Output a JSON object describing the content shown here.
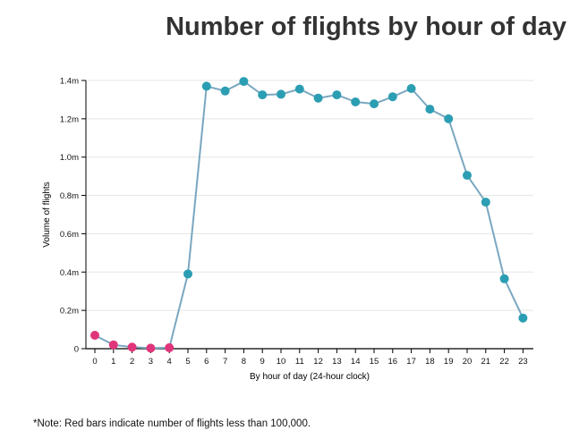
{
  "title": "Number of flights by hour of day",
  "note": "*Note: Red bars indicate number of flights less than 100,000.",
  "colors": {
    "normal_point": "#2b9eb3",
    "low_point": "#e0357a",
    "line": "#7aa7c0",
    "gridline": "#e5e5e5",
    "axis": "#000000",
    "title": "#333333"
  },
  "chart_data": {
    "type": "line",
    "title": "Number of flights by hour of day",
    "xlabel": "By hour of day (24-hour clock)",
    "ylabel": "Volume of flights",
    "x": [
      0,
      1,
      2,
      3,
      4,
      5,
      6,
      7,
      8,
      9,
      10,
      11,
      12,
      13,
      14,
      15,
      16,
      17,
      18,
      19,
      20,
      21,
      22,
      23
    ],
    "x_tick_labels": [
      "0",
      "1",
      "2",
      "3",
      "4",
      "5",
      "6",
      "7",
      "8",
      "9",
      "10",
      "11",
      "12",
      "13",
      "14",
      "15",
      "16",
      "17",
      "18",
      "19",
      "20",
      "21",
      "22",
      "23"
    ],
    "values": [
      70000,
      20000,
      8000,
      3000,
      5000,
      390000,
      1370000,
      1345000,
      1395000,
      1325000,
      1328000,
      1355000,
      1308000,
      1325000,
      1288000,
      1278000,
      1315000,
      1358000,
      1250000,
      1200000,
      905000,
      765000,
      365000,
      160000
    ],
    "ylim": [
      0,
      1400000
    ],
    "y_ticks": [
      0,
      200000,
      400000,
      600000,
      800000,
      1000000,
      1200000,
      1400000
    ],
    "y_tick_labels": [
      "0",
      "0.2m",
      "0.4m",
      "0.6m",
      "0.8m",
      "1.0m",
      "1.2m",
      "1.4m"
    ],
    "low_threshold": 100000,
    "grid": true
  }
}
